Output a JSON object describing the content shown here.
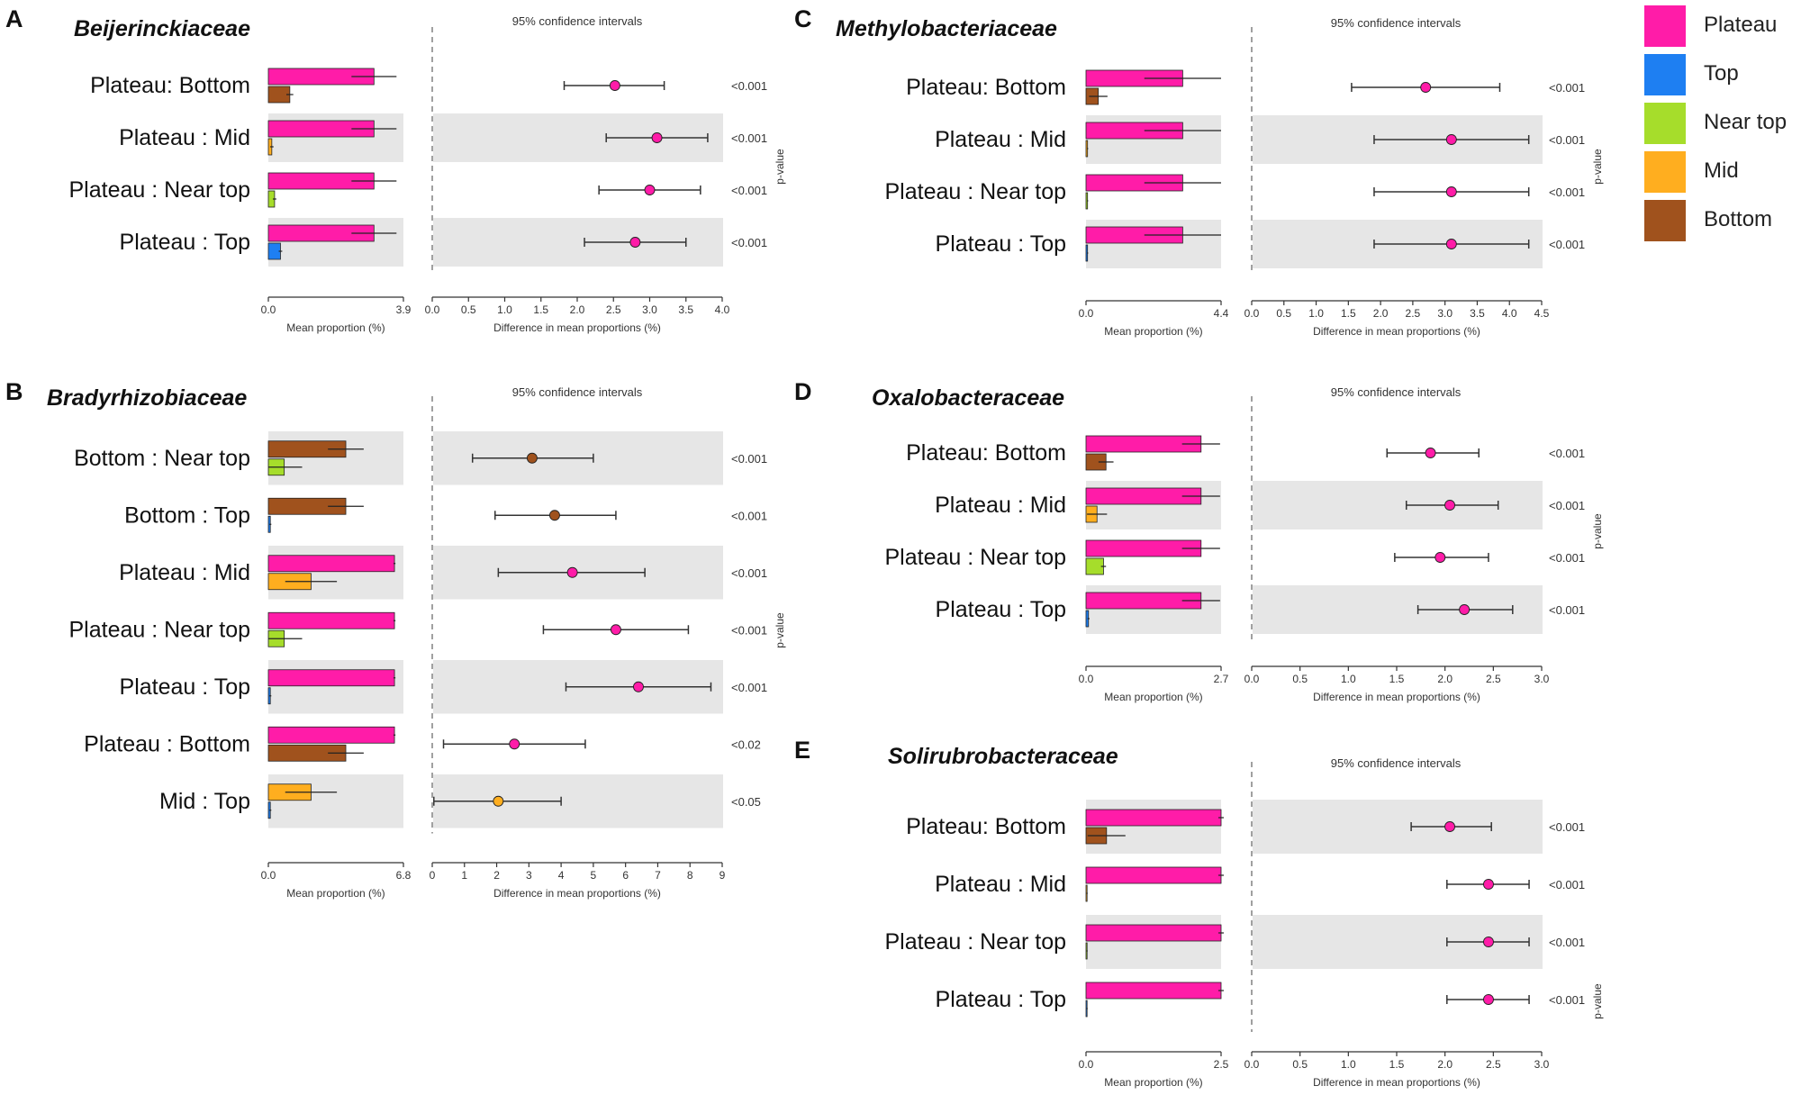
{
  "legend": [
    {
      "label": "Plateau",
      "color": "#ff1ca8"
    },
    {
      "label": "Top",
      "color": "#1e7ff2"
    },
    {
      "label": "Near top",
      "color": "#a6dd2b"
    },
    {
      "label": "Mid",
      "color": "#ffae1f"
    },
    {
      "label": "Bottom",
      "color": "#a0521d"
    }
  ],
  "colors": {
    "Plateau": "#ff1ca8",
    "Top": "#1e7ff2",
    "Near top": "#a6dd2b",
    "Mid": "#ffae1f",
    "Bottom": "#a0521d",
    "stripe": "#e6e6e6",
    "axis": "#333333"
  },
  "chart_data": [
    {
      "type": "bar",
      "panel": "A",
      "title": "Beijerinckiaceae",
      "ci_title": "95% confidence intervals",
      "xlabel_left": "Mean proportion (%)",
      "xlabel_right": "Difference in mean proportions (%)",
      "ylabel_right": "p-value",
      "left_xlim": [
        0,
        3.9
      ],
      "left_ticks": [
        "0.0",
        "3.9"
      ],
      "right_xlim": [
        0,
        4.0
      ],
      "right_ticks": [
        "0.0",
        "0.5",
        "1.0",
        "1.5",
        "2.0",
        "2.5",
        "3.0",
        "3.5",
        "4.0"
      ],
      "rows": [
        {
          "label": "Plateau: Bottom",
          "group1": "Plateau",
          "group2": "Bottom",
          "mean1": 3.05,
          "err1": 0.65,
          "mean2": 0.62,
          "err2": 0.1,
          "diff": 2.52,
          "ci": [
            1.82,
            3.2
          ],
          "p": "<0.001"
        },
        {
          "label": "Plateau : Mid",
          "group1": "Plateau",
          "group2": "Mid",
          "mean1": 3.05,
          "err1": 0.65,
          "mean2": 0.1,
          "err2": 0.05,
          "diff": 3.1,
          "ci": [
            2.4,
            3.8
          ],
          "p": "<0.001"
        },
        {
          "label": "Plateau : Near top",
          "group1": "Plateau",
          "group2": "Near top",
          "mean1": 3.05,
          "err1": 0.65,
          "mean2": 0.18,
          "err2": 0.05,
          "diff": 3.0,
          "ci": [
            2.3,
            3.7
          ],
          "p": "<0.001"
        },
        {
          "label": "Plateau : Top",
          "group1": "Plateau",
          "group2": "Top",
          "mean1": 3.05,
          "err1": 0.65,
          "mean2": 0.35,
          "err2": 0.05,
          "diff": 2.8,
          "ci": [
            2.1,
            3.5
          ],
          "p": "<0.001"
        }
      ]
    },
    {
      "type": "bar",
      "panel": "B",
      "title": "Bradyrhizobiaceae",
      "ci_title": "95% confidence intervals",
      "xlabel_left": "Mean proportion (%)",
      "xlabel_right": "Difference in mean proportions (%)",
      "ylabel_right": "p-value",
      "left_xlim": [
        0,
        6.8
      ],
      "left_ticks": [
        "0.0",
        "6.8"
      ],
      "right_xlim": [
        0,
        9
      ],
      "right_ticks": [
        "0",
        "1",
        "2",
        "3",
        "4",
        "5",
        "6",
        "7",
        "8",
        "9"
      ],
      "rows": [
        {
          "label": "Bottom : Near top",
          "group1": "Bottom",
          "group2": "Near top",
          "mean1": 3.9,
          "err1": 0.9,
          "mean2": 0.8,
          "err2": 0.9,
          "diff": 3.1,
          "ci": [
            1.25,
            5.0
          ],
          "p": "<0.001"
        },
        {
          "label": "Bottom : Top",
          "group1": "Bottom",
          "group2": "Top",
          "mean1": 3.9,
          "err1": 0.9,
          "mean2": 0.1,
          "err2": 0.05,
          "diff": 3.8,
          "ci": [
            1.95,
            5.7
          ],
          "p": "<0.001"
        },
        {
          "label": "Plateau : Mid",
          "group1": "Plateau",
          "group2": "Mid",
          "mean1": 6.35,
          "err1": 0.05,
          "mean2": 2.15,
          "err2": 1.3,
          "diff": 4.35,
          "ci": [
            2.05,
            6.6
          ],
          "p": "<0.001"
        },
        {
          "label": "Plateau : Near top",
          "group1": "Plateau",
          "group2": "Near top",
          "mean1": 6.35,
          "err1": 0.05,
          "mean2": 0.8,
          "err2": 0.9,
          "diff": 5.7,
          "ci": [
            3.45,
            7.95
          ],
          "p": "<0.001"
        },
        {
          "label": "Plateau : Top",
          "group1": "Plateau",
          "group2": "Top",
          "mean1": 6.35,
          "err1": 0.05,
          "mean2": 0.1,
          "err2": 0.05,
          "diff": 6.4,
          "ci": [
            4.15,
            8.65
          ],
          "p": "<0.001"
        },
        {
          "label": "Plateau : Bottom",
          "group1": "Plateau",
          "group2": "Bottom",
          "mean1": 6.35,
          "err1": 0.05,
          "mean2": 3.9,
          "err2": 0.9,
          "diff": 2.55,
          "ci": [
            0.35,
            4.75
          ],
          "p": "<0.02"
        },
        {
          "label": "Mid : Top",
          "group1": "Mid",
          "group2": "Top",
          "mean1": 2.15,
          "err1": 1.3,
          "mean2": 0.1,
          "err2": 0.05,
          "diff": 2.05,
          "ci": [
            0.05,
            4.0
          ],
          "p": "<0.05"
        }
      ]
    },
    {
      "type": "bar",
      "panel": "C",
      "title": "Methylobacteriaceae",
      "ci_title": "95% confidence intervals",
      "xlabel_left": "Mean proportion (%)",
      "xlabel_right": "Difference in mean proportions (%)",
      "ylabel_right": "p-value",
      "left_xlim": [
        0,
        4.4
      ],
      "left_ticks": [
        "0.0",
        "4.4"
      ],
      "right_xlim": [
        0,
        4.5
      ],
      "right_ticks": [
        "0.0",
        "0.5",
        "1.0",
        "1.5",
        "2.0",
        "2.5",
        "3.0",
        "3.5",
        "4.0",
        "4.5"
      ],
      "rows": [
        {
          "label": "Plateau: Bottom",
          "group1": "Plateau",
          "group2": "Bottom",
          "mean1": 3.15,
          "err1": 1.25,
          "mean2": 0.4,
          "err2": 0.3,
          "diff": 2.7,
          "ci": [
            1.55,
            3.85
          ],
          "p": "<0.001"
        },
        {
          "label": "Plateau : Mid",
          "group1": "Plateau",
          "group2": "Mid",
          "mean1": 3.15,
          "err1": 1.25,
          "mean2": 0.05,
          "err2": 0.02,
          "diff": 3.1,
          "ci": [
            1.9,
            4.3
          ],
          "p": "<0.001"
        },
        {
          "label": "Plateau : Near top",
          "group1": "Plateau",
          "group2": "Near top",
          "mean1": 3.15,
          "err1": 1.25,
          "mean2": 0.05,
          "err2": 0.02,
          "diff": 3.1,
          "ci": [
            1.9,
            4.3
          ],
          "p": "<0.001"
        },
        {
          "label": "Plateau : Top",
          "group1": "Plateau",
          "group2": "Top",
          "mean1": 3.15,
          "err1": 1.25,
          "mean2": 0.05,
          "err2": 0.02,
          "diff": 3.1,
          "ci": [
            1.9,
            4.3
          ],
          "p": "<0.001"
        }
      ]
    },
    {
      "type": "bar",
      "panel": "D",
      "title": "Oxalobacteraceae",
      "ci_title": "95% confidence intervals",
      "xlabel_left": "Mean proportion (%)",
      "xlabel_right": "Difference in mean proportions (%)",
      "ylabel_right": "p-value",
      "left_xlim": [
        0,
        2.7
      ],
      "left_ticks": [
        "0.0",
        "2.7"
      ],
      "right_xlim": [
        0,
        3.0
      ],
      "right_ticks": [
        "0.0",
        "0.5",
        "1.0",
        "1.5",
        "2.0",
        "2.5",
        "3.0"
      ],
      "rows": [
        {
          "label": "Plateau: Bottom",
          "group1": "Plateau",
          "group2": "Bottom",
          "mean1": 2.3,
          "err1": 0.38,
          "mean2": 0.4,
          "err2": 0.15,
          "diff": 1.85,
          "ci": [
            1.4,
            2.35
          ],
          "p": "<0.001"
        },
        {
          "label": "Plateau : Mid",
          "group1": "Plateau",
          "group2": "Mid",
          "mean1": 2.3,
          "err1": 0.38,
          "mean2": 0.22,
          "err2": 0.2,
          "diff": 2.05,
          "ci": [
            1.6,
            2.55
          ],
          "p": "<0.001"
        },
        {
          "label": "Plateau : Near top",
          "group1": "Plateau",
          "group2": "Near top",
          "mean1": 2.3,
          "err1": 0.38,
          "mean2": 0.35,
          "err2": 0.05,
          "diff": 1.95,
          "ci": [
            1.48,
            2.45
          ],
          "p": "<0.001"
        },
        {
          "label": "Plateau : Top",
          "group1": "Plateau",
          "group2": "Top",
          "mean1": 2.3,
          "err1": 0.38,
          "mean2": 0.05,
          "err2": 0.02,
          "diff": 2.2,
          "ci": [
            1.72,
            2.7
          ],
          "p": "<0.001"
        }
      ]
    },
    {
      "type": "bar",
      "panel": "E",
      "title": "Solirubrobacteraceae",
      "ci_title": "95% confidence intervals",
      "xlabel_left": "Mean proportion (%)",
      "xlabel_right": "Difference in mean proportions (%)",
      "ylabel_right": "p-value",
      "left_xlim": [
        0,
        2.5
      ],
      "left_ticks": [
        "0.0",
        "2.5"
      ],
      "right_xlim": [
        0,
        3.0
      ],
      "right_ticks": [
        "0.0",
        "0.5",
        "1.0",
        "1.5",
        "2.0",
        "2.5",
        "3.0"
      ],
      "rows": [
        {
          "label": "Plateau: Bottom",
          "group1": "Plateau",
          "group2": "Bottom",
          "mean1": 2.5,
          "err1": 0.05,
          "mean2": 0.38,
          "err2": 0.35,
          "diff": 2.05,
          "ci": [
            1.65,
            2.48
          ],
          "p": "<0.001"
        },
        {
          "label": "Plateau : Mid",
          "group1": "Plateau",
          "group2": "Mid",
          "mean1": 2.5,
          "err1": 0.05,
          "mean2": 0.02,
          "err2": 0.01,
          "diff": 2.45,
          "ci": [
            2.02,
            2.87
          ],
          "p": "<0.001"
        },
        {
          "label": "Plateau : Near top",
          "group1": "Plateau",
          "group2": "Near top",
          "mean1": 2.5,
          "err1": 0.05,
          "mean2": 0.02,
          "err2": 0.01,
          "diff": 2.45,
          "ci": [
            2.02,
            2.87
          ],
          "p": "<0.001"
        },
        {
          "label": "Plateau : Top",
          "group1": "Plateau",
          "group2": "Top",
          "mean1": 2.5,
          "err1": 0.05,
          "mean2": 0.02,
          "err2": 0.01,
          "diff": 2.45,
          "ci": [
            2.02,
            2.87
          ],
          "p": "<0.001"
        }
      ]
    }
  ]
}
